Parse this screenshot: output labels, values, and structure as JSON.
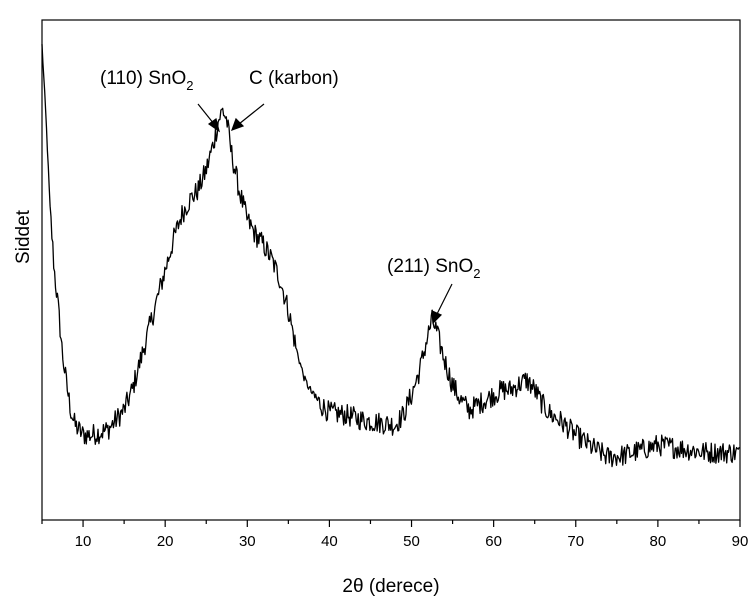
{
  "chart_data": {
    "type": "line",
    "title": "",
    "xlabel": "2θ (derece)",
    "ylabel": "Siddet",
    "xlim": [
      5,
      90
    ],
    "ylim": [
      0,
      100
    ],
    "x_ticks": [
      "10",
      "20",
      "30",
      "40",
      "50",
      "60",
      "70",
      "80",
      "90"
    ],
    "grid": false,
    "legend": "none",
    "line_color": "#000000",
    "series": [
      {
        "x": [
          5,
          5.5,
          6,
          6.5,
          7,
          7.5,
          8,
          8.5,
          9,
          9.5,
          10,
          11,
          12,
          13,
          14,
          15,
          16,
          17,
          18,
          19,
          20,
          21,
          22,
          23,
          24,
          25,
          26,
          26.5,
          27,
          27.5,
          28,
          29,
          30,
          31,
          32,
          33,
          34,
          35,
          36,
          37,
          38,
          39,
          40,
          42,
          44,
          46,
          48,
          49,
          50,
          51,
          52,
          52.5,
          53,
          54,
          55,
          56,
          57,
          58,
          59,
          60,
          61,
          62,
          63,
          64,
          65,
          66,
          67,
          68,
          70,
          72,
          74,
          76,
          78,
          80,
          82,
          84,
          86,
          88,
          90
        ],
        "y": [
          95,
          80,
          62,
          50,
          42,
          33,
          27,
          22,
          19,
          18,
          17,
          17,
          17.5,
          18,
          20,
          22,
          26,
          32,
          38,
          44,
          50,
          56,
          61,
          64,
          66,
          70,
          76,
          80,
          82,
          80,
          74,
          66,
          60,
          57,
          55,
          52,
          48,
          42,
          34,
          28,
          25,
          23,
          21.5,
          21,
          20,
          19.5,
          19,
          21,
          25,
          30,
          37,
          40,
          38,
          32,
          27,
          24,
          22,
          23,
          24,
          25,
          26,
          26,
          27,
          28,
          26,
          23,
          21,
          20,
          17,
          14.5,
          12.5,
          13,
          14,
          15,
          14.5,
          14,
          13.5,
          13.5,
          13.5
        ]
      }
    ],
    "annotations": [
      {
        "text": "(110) SnO",
        "sub": "2",
        "x": 26.9,
        "y": 81
      },
      {
        "text": "C (karbon)",
        "x": 27.5,
        "y": 80
      },
      {
        "text": "(211) SnO",
        "sub": "2",
        "x": 52.3,
        "y": 40
      }
    ]
  }
}
